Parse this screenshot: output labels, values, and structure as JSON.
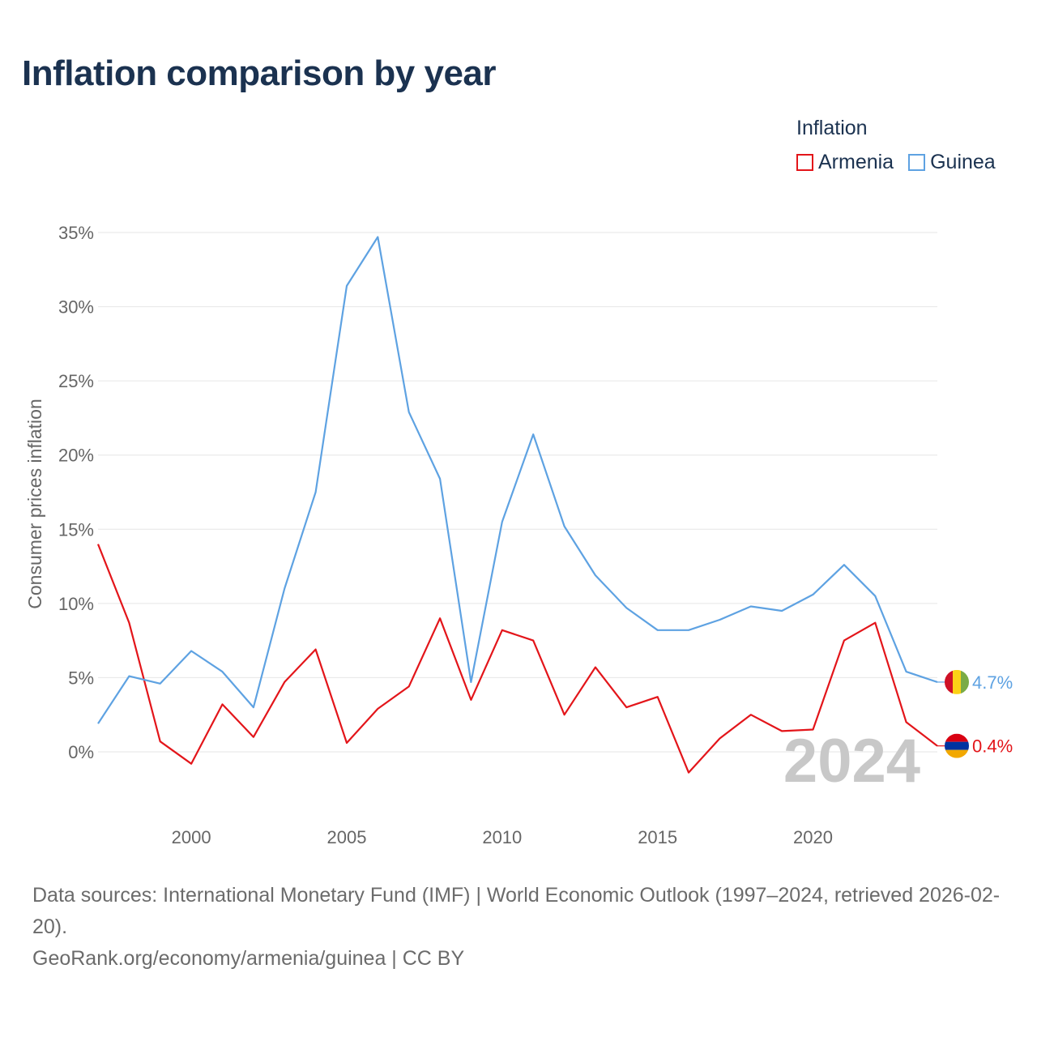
{
  "title": "Inflation comparison by year",
  "legend": {
    "title": "Inflation",
    "items": [
      {
        "label": "Armenia",
        "color": "#e3151a"
      },
      {
        "label": "Guinea",
        "color": "#5ea2e2"
      }
    ]
  },
  "chart_data": {
    "type": "line",
    "title": "Inflation comparison by year",
    "xlabel": "",
    "ylabel": "Consumer prices inflation",
    "x": [
      1997,
      1998,
      1999,
      2000,
      2001,
      2002,
      2003,
      2004,
      2005,
      2006,
      2007,
      2008,
      2009,
      2010,
      2011,
      2012,
      2013,
      2014,
      2015,
      2016,
      2017,
      2018,
      2019,
      2020,
      2021,
      2022,
      2023,
      2024
    ],
    "xlim": [
      1997,
      2024
    ],
    "ylim": [
      -5,
      35
    ],
    "x_ticks": [
      "2000",
      "2005",
      "2010",
      "2015",
      "2020"
    ],
    "y_ticks": [
      "0%",
      "5%",
      "10%",
      "15%",
      "20%",
      "25%",
      "30%",
      "35%"
    ],
    "grid": true,
    "legend_position": "top-right",
    "year_watermark": "2024",
    "series": [
      {
        "name": "Armenia",
        "color": "#e3151a",
        "values": [
          14.0,
          8.7,
          0.7,
          -0.8,
          3.2,
          1.0,
          4.7,
          6.9,
          0.6,
          2.9,
          4.4,
          9.0,
          3.5,
          8.2,
          7.5,
          2.5,
          5.7,
          3.0,
          3.7,
          -1.4,
          0.9,
          2.5,
          1.4,
          1.5,
          7.5,
          8.7,
          2.0,
          0.4
        ],
        "end_label": "0.4%",
        "flag": "armenia"
      },
      {
        "name": "Guinea",
        "color": "#5ea2e2",
        "values": [
          1.9,
          5.1,
          4.6,
          6.8,
          5.4,
          3.0,
          11.0,
          17.5,
          31.4,
          34.7,
          22.9,
          18.4,
          4.7,
          15.5,
          21.4,
          15.2,
          11.9,
          9.7,
          8.2,
          8.2,
          8.9,
          9.8,
          9.5,
          10.6,
          12.6,
          10.5,
          5.4,
          4.7
        ],
        "end_label": "4.7%",
        "flag": "guinea"
      }
    ]
  },
  "footer": {
    "sources": "Data sources: International Monetary Fund (IMF) | World Economic Outlook (1997–2024, retrieved 2026-02-20).",
    "attribution": "GeoRank.org/economy/armenia/guinea | CC BY"
  }
}
